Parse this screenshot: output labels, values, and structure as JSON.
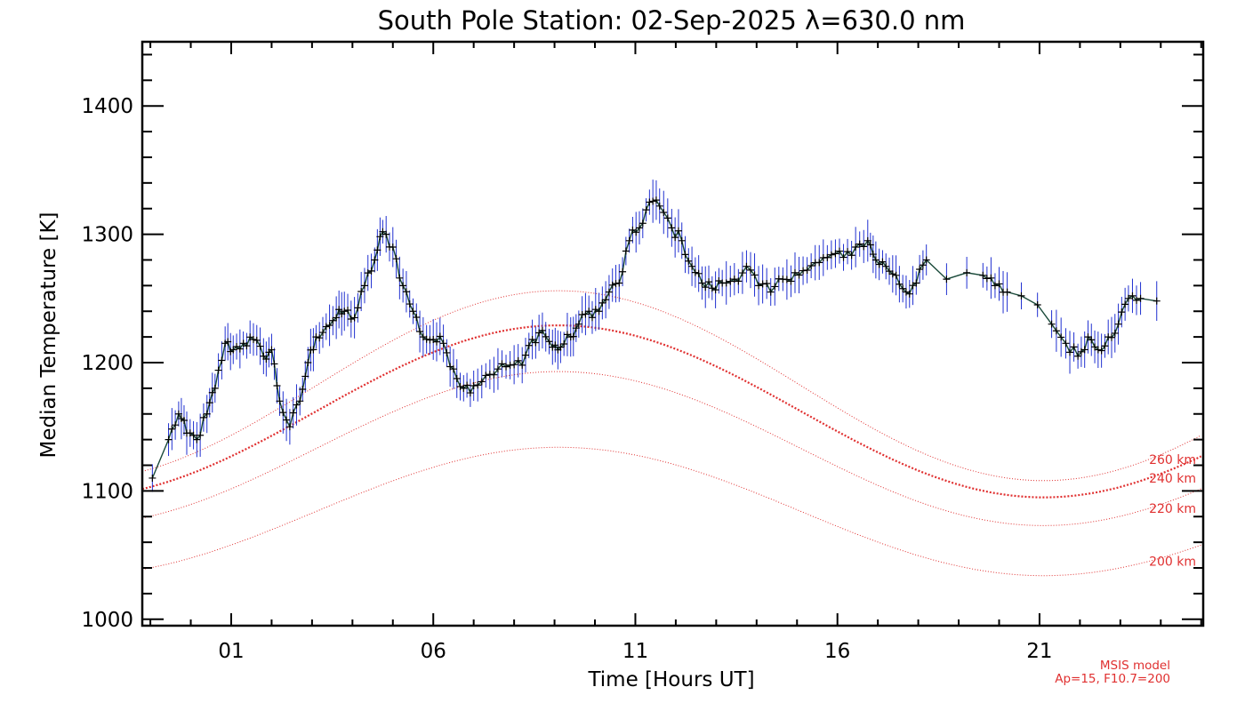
{
  "chart_data": {
    "type": "line",
    "title": "South Pole Station: 02-Sep-2025 λ=630.0 nm",
    "xlabel": "Time [Hours UT]",
    "ylabel": "Median Temperature [K]",
    "xlim": [
      -1.2,
      25.05
    ],
    "ylim": [
      995,
      1450
    ],
    "x_ticks": [
      1,
      6,
      11,
      16,
      21
    ],
    "x_tick_labels": [
      "01",
      "06",
      "11",
      "16",
      "21"
    ],
    "y_ticks": [
      1000,
      1100,
      1200,
      1300,
      1400
    ],
    "y_tick_labels": [
      "1000",
      "1100",
      "1200",
      "1300",
      "1400"
    ],
    "grid": false,
    "colors": {
      "data_line": "#1a4a3a",
      "markers": "#000000",
      "error_bars": "#2030d0",
      "model": "#e03030"
    },
    "series": [
      {
        "x": [
          -0.95,
          -0.55,
          -0.3,
          -0.1,
          0.15,
          0.4,
          0.6,
          0.85,
          1.05,
          1.3,
          1.55,
          1.8,
          2.0,
          2.2,
          2.45,
          2.7,
          2.9,
          3.1,
          3.35,
          3.6,
          3.8,
          4.05,
          4.3,
          4.55,
          4.75,
          5.0,
          5.25,
          5.5,
          5.75,
          6.0,
          6.25,
          6.5,
          6.75,
          7.0,
          7.3,
          7.6,
          7.9,
          8.2,
          8.45,
          8.7,
          8.95,
          9.15,
          9.4,
          9.6,
          9.85,
          10.1,
          10.35,
          10.6,
          10.85,
          11.1,
          11.35,
          11.6,
          11.9,
          12.15,
          12.4,
          12.65,
          12.9,
          13.15,
          13.45,
          13.75,
          14.05,
          14.35,
          14.65,
          14.95,
          15.25,
          15.55,
          15.85,
          16.15,
          16.45,
          16.75,
          16.95,
          17.2,
          17.45,
          17.7,
          17.95,
          18.2,
          18.7,
          19.2,
          19.6,
          19.9,
          20.2,
          20.55,
          20.95,
          21.3,
          21.65,
          21.95,
          22.2,
          22.45,
          22.7,
          22.95,
          23.2,
          23.5,
          23.9
        ],
        "y": [
          1110,
          1140,
          1160,
          1145,
          1140,
          1160,
          1180,
          1215,
          1210,
          1215,
          1218,
          1205,
          1210,
          1170,
          1150,
          1170,
          1200,
          1220,
          1228,
          1235,
          1240,
          1235,
          1260,
          1280,
          1302,
          1290,
          1260,
          1240,
          1220,
          1218,
          1215,
          1195,
          1180,
          1182,
          1190,
          1195,
          1198,
          1198,
          1218,
          1225,
          1212,
          1212,
          1220,
          1230,
          1240,
          1240,
          1255,
          1262,
          1295,
          1305,
          1325,
          1322,
          1305,
          1295,
          1275,
          1262,
          1258,
          1262,
          1265,
          1275,
          1260,
          1255,
          1265,
          1270,
          1272,
          1278,
          1284,
          1282,
          1290,
          1295,
          1280,
          1275,
          1268,
          1255,
          1262,
          1280,
          1265,
          1270,
          1268,
          1260,
          1255,
          1252,
          1245,
          1230,
          1215,
          1205,
          1220,
          1210,
          1220,
          1230,
          1250,
          1250,
          1248
        ]
      }
    ],
    "model_title": "MSIS model",
    "model_params": "Ap=15, F10.7=200",
    "model_curves": [
      {
        "label": "260 km",
        "mean": 1182,
        "amp": 74,
        "peak_x": 9.1,
        "period": 24.0,
        "emphasis": false
      },
      {
        "label": "240 km",
        "mean": 1162,
        "amp": 67,
        "peak_x": 9.1,
        "period": 24.0,
        "emphasis": true
      },
      {
        "label": "220 km",
        "mean": 1133,
        "amp": 60,
        "peak_x": 9.1,
        "period": 24.0,
        "emphasis": false
      },
      {
        "label": "200 km",
        "mean": 1084,
        "amp": 50,
        "peak_x": 9.1,
        "period": 24.0,
        "emphasis": false
      }
    ]
  }
}
